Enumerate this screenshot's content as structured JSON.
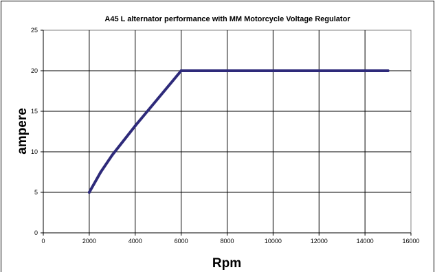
{
  "chart_data": {
    "type": "line",
    "title": "A45 L alternator performance with MM Motorcycle Voltage Regulator",
    "xlabel": "Rpm",
    "ylabel": "ampere",
    "xlim": [
      0,
      16000
    ],
    "ylim": [
      0,
      25
    ],
    "x_ticks": [
      "0",
      "2000",
      "4000",
      "6000",
      "8000",
      "10000",
      "12000",
      "14000",
      "16000"
    ],
    "y_ticks": [
      "0",
      "5",
      "10",
      "15",
      "20",
      "25"
    ],
    "grid": true,
    "legend": "none",
    "series": [
      {
        "color": "#2e2a7a",
        "x": [
          2000,
          2500,
          3000,
          4000,
          5000,
          6000,
          8000,
          10000,
          12000,
          14000,
          15000
        ],
        "values": [
          5,
          7.5,
          9.6,
          13.2,
          16.6,
          20,
          20,
          20,
          20,
          20,
          20
        ]
      }
    ],
    "plot_background": "#ffffff",
    "grid_color": "#000000",
    "frame_color": "#808080"
  }
}
